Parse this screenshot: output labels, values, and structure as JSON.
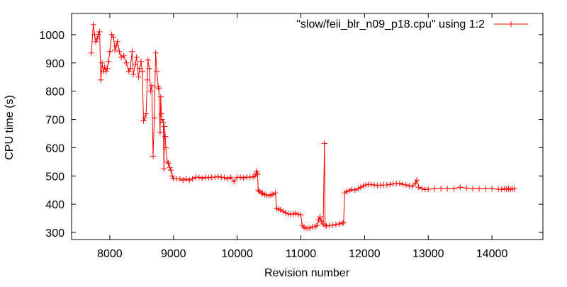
{
  "chart_data": {
    "type": "line",
    "xlabel": "Revision number",
    "ylabel": "CPU time (s)",
    "xlim": [
      7400,
      14800
    ],
    "ylim": [
      275,
      1075
    ],
    "x_ticks": [
      8000,
      9000,
      10000,
      11000,
      12000,
      13000,
      14000
    ],
    "y_ticks": [
      300,
      400,
      500,
      600,
      700,
      800,
      900,
      1000
    ],
    "grid": false,
    "legend_position": "top-right",
    "series": [
      {
        "name": "\"slow/feii_blr_n09_p18.cpu\" using 1:2",
        "color": "#ff0000",
        "marker": "plus",
        "points": [
          [
            7710,
            935
          ],
          [
            7740,
            1035
          ],
          [
            7760,
            1000
          ],
          [
            7780,
            975
          ],
          [
            7800,
            985
          ],
          [
            7820,
            1000
          ],
          [
            7840,
            1010
          ],
          [
            7860,
            840
          ],
          [
            7880,
            900
          ],
          [
            7900,
            870
          ],
          [
            7920,
            885
          ],
          [
            7940,
            870
          ],
          [
            7960,
            880
          ],
          [
            7980,
            905
          ],
          [
            8000,
            940
          ],
          [
            8030,
            1000
          ],
          [
            8060,
            990
          ],
          [
            8080,
            945
          ],
          [
            8100,
            960
          ],
          [
            8120,
            975
          ],
          [
            8150,
            940
          ],
          [
            8180,
            920
          ],
          [
            8220,
            925
          ],
          [
            8260,
            900
          ],
          [
            8300,
            870
          ],
          [
            8320,
            880
          ],
          [
            8350,
            940
          ],
          [
            8370,
            860
          ],
          [
            8400,
            895
          ],
          [
            8420,
            920
          ],
          [
            8450,
            850
          ],
          [
            8470,
            880
          ],
          [
            8490,
            905
          ],
          [
            8510,
            870
          ],
          [
            8530,
            695
          ],
          [
            8550,
            705
          ],
          [
            8570,
            720
          ],
          [
            8590,
            840
          ],
          [
            8600,
            910
          ],
          [
            8620,
            880
          ],
          [
            8640,
            800
          ],
          [
            8660,
            820
          ],
          [
            8680,
            570
          ],
          [
            8700,
            705
          ],
          [
            8720,
            935
          ],
          [
            8740,
            870
          ],
          [
            8760,
            815
          ],
          [
            8770,
            810
          ],
          [
            8790,
            655
          ],
          [
            8800,
            780
          ],
          [
            8810,
            720
          ],
          [
            8820,
            700
          ],
          [
            8840,
            690
          ],
          [
            8850,
            525
          ],
          [
            8860,
            675
          ],
          [
            8870,
            640
          ],
          [
            8880,
            600
          ],
          [
            8900,
            550
          ],
          [
            8920,
            545
          ],
          [
            8940,
            530
          ],
          [
            8960,
            520
          ],
          [
            8980,
            500
          ],
          [
            9000,
            490
          ],
          [
            9050,
            490
          ],
          [
            9100,
            490
          ],
          [
            9150,
            485
          ],
          [
            9200,
            490
          ],
          [
            9250,
            485
          ],
          [
            9300,
            490
          ],
          [
            9350,
            495
          ],
          [
            9400,
            495
          ],
          [
            9450,
            492
          ],
          [
            9500,
            495
          ],
          [
            9550,
            494
          ],
          [
            9600,
            495
          ],
          [
            9650,
            496
          ],
          [
            9700,
            498
          ],
          [
            9750,
            495
          ],
          [
            9800,
            494
          ],
          [
            9850,
            490
          ],
          [
            9900,
            495
          ],
          [
            9950,
            480
          ],
          [
            10000,
            495
          ],
          [
            10050,
            495
          ],
          [
            10100,
            493
          ],
          [
            10150,
            496
          ],
          [
            10200,
            495
          ],
          [
            10250,
            497
          ],
          [
            10280,
            500
          ],
          [
            10300,
            510
          ],
          [
            10310,
            517
          ],
          [
            10320,
            505
          ],
          [
            10330,
            450
          ],
          [
            10350,
            445
          ],
          [
            10380,
            440
          ],
          [
            10400,
            438
          ],
          [
            10430,
            435
          ],
          [
            10460,
            432
          ],
          [
            10500,
            430
          ],
          [
            10530,
            433
          ],
          [
            10560,
            435
          ],
          [
            10600,
            440
          ],
          [
            10620,
            385
          ],
          [
            10650,
            382
          ],
          [
            10680,
            380
          ],
          [
            10720,
            375
          ],
          [
            10760,
            370
          ],
          [
            10800,
            366
          ],
          [
            10840,
            364
          ],
          [
            10880,
            365
          ],
          [
            10920,
            368
          ],
          [
            10960,
            364
          ],
          [
            11000,
            362
          ],
          [
            11020,
            325
          ],
          [
            11050,
            318
          ],
          [
            11080,
            315
          ],
          [
            11110,
            315
          ],
          [
            11140,
            316
          ],
          [
            11180,
            320
          ],
          [
            11220,
            320
          ],
          [
            11250,
            325
          ],
          [
            11280,
            345
          ],
          [
            11300,
            355
          ],
          [
            11320,
            340
          ],
          [
            11350,
            330
          ],
          [
            11370,
            615
          ],
          [
            11380,
            325
          ],
          [
            11400,
            323
          ],
          [
            11450,
            325
          ],
          [
            11500,
            326
          ],
          [
            11550,
            328
          ],
          [
            11600,
            330
          ],
          [
            11650,
            333
          ],
          [
            11670,
            335
          ],
          [
            11690,
            440
          ],
          [
            11720,
            445
          ],
          [
            11760,
            448
          ],
          [
            11800,
            452
          ],
          [
            11850,
            450
          ],
          [
            11900,
            455
          ],
          [
            11940,
            460
          ],
          [
            11980,
            465
          ],
          [
            12020,
            468
          ],
          [
            12060,
            470
          ],
          [
            12100,
            470
          ],
          [
            12150,
            468
          ],
          [
            12200,
            466
          ],
          [
            12250,
            467
          ],
          [
            12300,
            468
          ],
          [
            12350,
            468
          ],
          [
            12400,
            470
          ],
          [
            12450,
            472
          ],
          [
            12500,
            473
          ],
          [
            12550,
            474
          ],
          [
            12600,
            470
          ],
          [
            12650,
            468
          ],
          [
            12700,
            465
          ],
          [
            12750,
            463
          ],
          [
            12800,
            475
          ],
          [
            12820,
            485
          ],
          [
            12850,
            460
          ],
          [
            12900,
            455
          ],
          [
            12950,
            452
          ],
          [
            13000,
            453
          ],
          [
            13100,
            455
          ],
          [
            13200,
            455
          ],
          [
            13300,
            455
          ],
          [
            13400,
            455
          ],
          [
            13500,
            460
          ],
          [
            13600,
            457
          ],
          [
            13700,
            455
          ],
          [
            13800,
            455
          ],
          [
            13900,
            455
          ],
          [
            14000,
            455
          ],
          [
            14100,
            453
          ],
          [
            14150,
            452
          ],
          [
            14200,
            455
          ],
          [
            14230,
            453
          ],
          [
            14260,
            455
          ],
          [
            14290,
            452
          ],
          [
            14320,
            455
          ],
          [
            14350,
            454
          ]
        ]
      }
    ]
  }
}
